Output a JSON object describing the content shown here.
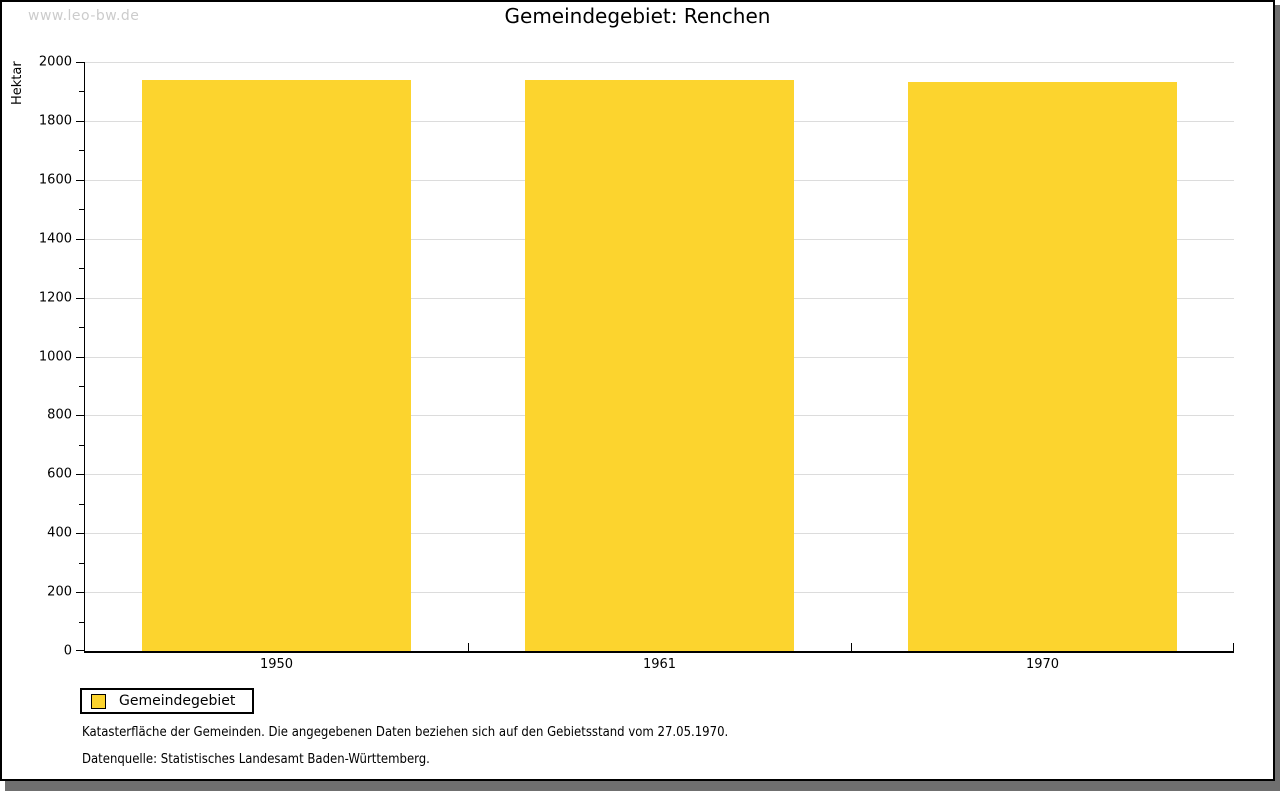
{
  "page": {
    "watermark": "www.leo-bw.de",
    "title": "Gemeindegebiet: Renchen"
  },
  "chart_data": {
    "type": "bar",
    "title": "Gemeindegebiet: Renchen",
    "categories": [
      "1950",
      "1961",
      "1970"
    ],
    "series": [
      {
        "name": "Gemeindegebiet",
        "values": [
          1938,
          1938,
          1932
        ]
      }
    ],
    "xlabel": "",
    "ylabel": "Hektar",
    "ylim": [
      0,
      2000
    ],
    "y_major_tick": 200,
    "y_minor_tick": 100,
    "grid": true,
    "legend_position": "bottom-left",
    "bar_color": "#FCD42E"
  },
  "legend": {
    "items": [
      {
        "label": "Gemeindegebiet",
        "color": "#FCD42E"
      }
    ]
  },
  "footer": {
    "line1": "Katasterfläche der Gemeinden. Die angegebenen Daten beziehen sich auf den Gebietsstand vom 27.05.1970.",
    "line2": "Datenquelle: Statistisches Landesamt Baden-Württemberg."
  },
  "colors": {
    "bar": "#FCD42E",
    "grid": "#DCDCDC",
    "axis": "#000000",
    "watermark": "#CCCCCC",
    "shadow": "#6F6F6F"
  }
}
